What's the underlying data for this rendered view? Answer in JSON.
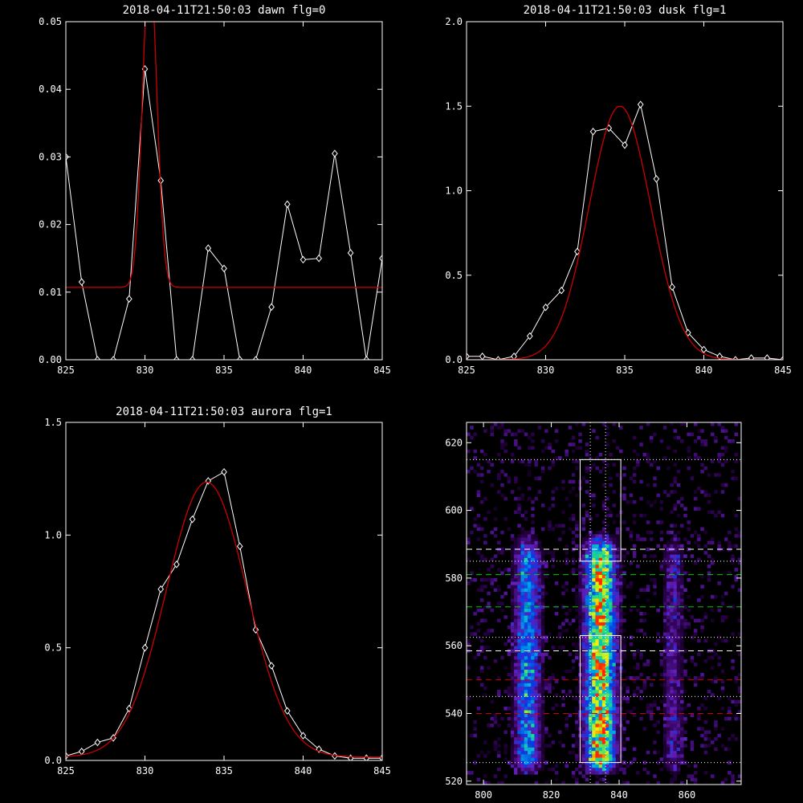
{
  "chart_data": [
    {
      "id": "dawn",
      "type": "line",
      "title": "2018-04-11T21:50:03 dawn flg=0",
      "xlim": [
        825,
        845
      ],
      "ylim": [
        0,
        0.05
      ],
      "xticks": [
        825,
        830,
        835,
        840,
        845
      ],
      "xtick_labels": [
        "825",
        "830",
        "835",
        "840",
        "845"
      ],
      "yticks": [
        0,
        0.01,
        0.02,
        0.03,
        0.04,
        0.05
      ],
      "ytick_labels": [
        "0.00",
        "0.01",
        "0.02",
        "0.03",
        "0.04",
        "0.05"
      ],
      "series": [
        {
          "color": "#ffffff",
          "markers": "diamond",
          "x": [
            825,
            826,
            827,
            828,
            829,
            830,
            831,
            832,
            833,
            834,
            835,
            836,
            837,
            838,
            839,
            840,
            841,
            842,
            843,
            844,
            845
          ],
          "y": [
            0.03,
            0.0115,
            0.0,
            0.0,
            0.009,
            0.043,
            0.0265,
            0.0,
            0.0,
            0.0165,
            0.0135,
            0.0,
            0.0,
            0.0078,
            0.023,
            0.0148,
            0.015,
            0.0305,
            0.0158,
            0.0,
            0.015
          ]
        },
        {
          "color": "#cc0000",
          "kind": "gaussian_fit",
          "params": {
            "amplitude": 0.048,
            "center": 830.3,
            "sigma": 0.45,
            "offset": 0.0107
          }
        }
      ]
    },
    {
      "id": "dusk",
      "type": "line",
      "title": "2018-04-11T21:50:03 dusk flg=1",
      "xlim": [
        825,
        845
      ],
      "ylim": [
        0,
        2.0
      ],
      "xticks": [
        825,
        830,
        835,
        840,
        845
      ],
      "xtick_labels": [
        "825",
        "830",
        "835",
        "840",
        "845"
      ],
      "yticks": [
        0,
        0.5,
        1.0,
        1.5,
        2.0
      ],
      "ytick_labels": [
        "0.0",
        "0.5",
        "1.0",
        "1.5",
        "2.0"
      ],
      "series": [
        {
          "color": "#ffffff",
          "markers": "diamond",
          "x": [
            825,
            826,
            827,
            828,
            829,
            830,
            831,
            832,
            833,
            834,
            835,
            836,
            837,
            838,
            839,
            840,
            841,
            842,
            843,
            844,
            845
          ],
          "y": [
            0.02,
            0.02,
            0.0,
            0.02,
            0.14,
            0.31,
            0.41,
            0.64,
            1.35,
            1.37,
            1.27,
            1.51,
            1.07,
            0.43,
            0.16,
            0.06,
            0.02,
            0.0,
            0.01,
            0.01,
            0.0
          ]
        },
        {
          "color": "#cc0000",
          "kind": "gaussian_fit",
          "params": {
            "amplitude": 1.5,
            "center": 834.7,
            "sigma": 1.95,
            "offset": 0.0
          }
        }
      ]
    },
    {
      "id": "aurora",
      "type": "line",
      "title": "2018-04-11T21:50:03 aurora flg=1",
      "xlim": [
        825,
        845
      ],
      "ylim": [
        0,
        1.5
      ],
      "xticks": [
        825,
        830,
        835,
        840,
        845
      ],
      "xtick_labels": [
        "825",
        "830",
        "835",
        "840",
        "845"
      ],
      "yticks": [
        0,
        0.5,
        1.0,
        1.5
      ],
      "ytick_labels": [
        "0.0",
        "0.5",
        "1.0",
        "1.5"
      ],
      "series": [
        {
          "color": "#ffffff",
          "markers": "diamond",
          "x": [
            825,
            826,
            827,
            828,
            829,
            830,
            831,
            832,
            833,
            834,
            835,
            836,
            837,
            838,
            839,
            840,
            841,
            842,
            843,
            844,
            845
          ],
          "y": [
            0.02,
            0.04,
            0.08,
            0.1,
            0.23,
            0.5,
            0.76,
            0.87,
            1.07,
            1.24,
            1.28,
            0.95,
            0.58,
            0.42,
            0.22,
            0.11,
            0.05,
            0.02,
            0.01,
            0.01,
            0.01
          ]
        },
        {
          "color": "#cc0000",
          "kind": "gaussian_fit",
          "params": {
            "amplitude": 1.22,
            "center": 833.9,
            "sigma": 2.55,
            "offset": 0.015
          }
        }
      ]
    },
    {
      "id": "image",
      "type": "heatmap",
      "title": "",
      "xlim": [
        795,
        876
      ],
      "ylim": [
        519,
        626
      ],
      "xticks": [
        800,
        820,
        840,
        860
      ],
      "xtick_labels": [
        "800",
        "820",
        "840",
        "860"
      ],
      "yticks": [
        520,
        540,
        560,
        580,
        600,
        620
      ],
      "ytick_labels": [
        "520",
        "540",
        "560",
        "580",
        "600",
        "620"
      ],
      "emission_columns": [
        {
          "center": 813,
          "width": 2.5,
          "strength": 0.55
        },
        {
          "center": 834.5,
          "width": 3.0,
          "strength": 1.0
        },
        {
          "center": 856,
          "width": 2.0,
          "strength": 0.25
        }
      ],
      "emission_y_range": [
        524,
        592
      ],
      "boxes": [
        {
          "x": [
            828.5,
            840.5
          ],
          "y": [
            525.5,
            563
          ]
        },
        {
          "x": [
            828.5,
            840.5
          ],
          "y": [
            585,
            615
          ]
        }
      ],
      "vertical_dotted_x": [
        831.5,
        836
      ],
      "horizontal_lines": [
        {
          "y": 615,
          "style": "dotted",
          "color": "#ffffff"
        },
        {
          "y": 588.5,
          "style": "dashed",
          "color": "#ffffff"
        },
        {
          "y": 585,
          "style": "dotted",
          "color": "#ffffff"
        },
        {
          "y": 581,
          "style": "dashed",
          "color": "#00cc00"
        },
        {
          "y": 571.5,
          "style": "dashed",
          "color": "#00cc00"
        },
        {
          "y": 562.5,
          "style": "dotted",
          "color": "#ffffff"
        },
        {
          "y": 558.5,
          "style": "dashed",
          "color": "#ffffff"
        },
        {
          "y": 550,
          "style": "dashed",
          "color": "#cc0000"
        },
        {
          "y": 545,
          "style": "dotted",
          "color": "#ffffff"
        },
        {
          "y": 540,
          "style": "dashed",
          "color": "#cc0000"
        },
        {
          "y": 525.5,
          "style": "dotted",
          "color": "#ffffff"
        }
      ]
    }
  ]
}
